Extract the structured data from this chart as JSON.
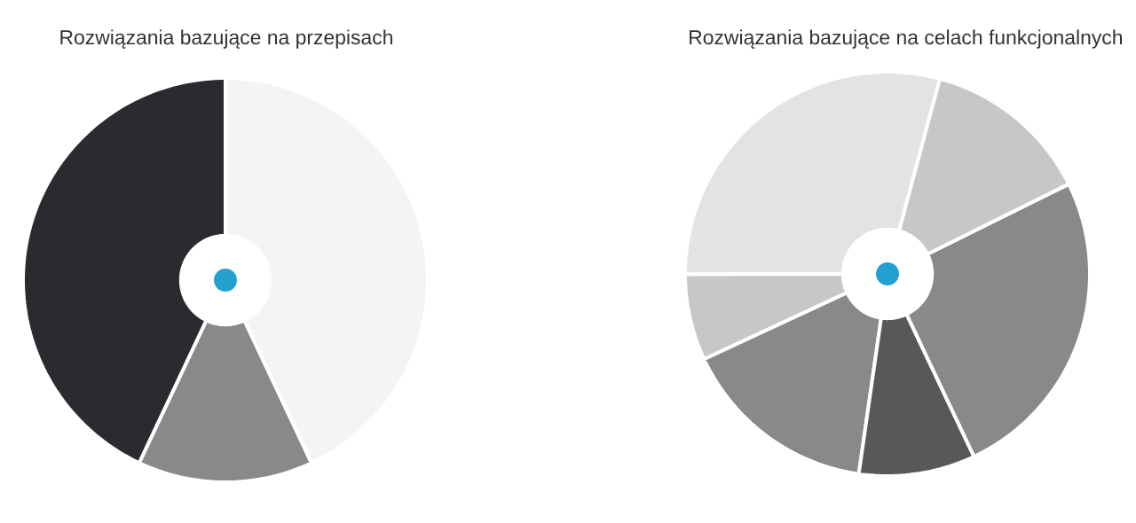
{
  "chart_data": [
    {
      "type": "donut",
      "title": "Rozwiązania bazujące na przepisach",
      "categories": [
        null,
        null,
        null
      ],
      "values": [
        43,
        14,
        43
      ],
      "colors": [
        "#2b2a2e",
        "#88898a",
        "#f4f4f4"
      ]
    },
    {
      "type": "donut",
      "title": "Rozwiązania bazujące na celach funkcjonalnych",
      "categories": [
        null,
        null,
        null,
        null,
        null,
        null
      ],
      "values": [
        29.2,
        6.9,
        15.8,
        9.3,
        25.3,
        13.5
      ],
      "colors": [
        "#e2e3e4",
        "#c6c7c8",
        "#88898a",
        "#58585a",
        "#88898a",
        "#c6c7c8"
      ]
    }
  ]
}
